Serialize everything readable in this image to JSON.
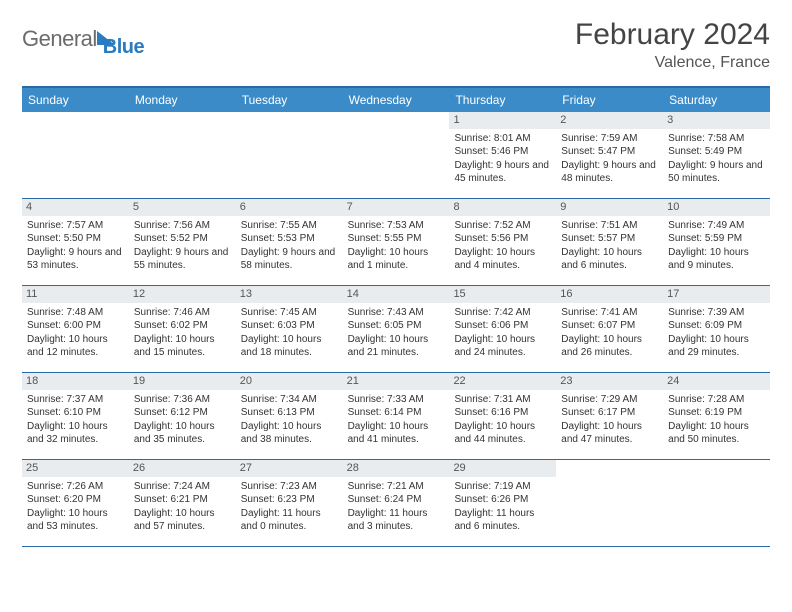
{
  "brand": {
    "word1": "General",
    "word2": "Blue"
  },
  "title": "February 2024",
  "location": "Valence, France",
  "colors": {
    "header_bg": "#3b8bc9",
    "border": "#2a6aa8",
    "daynum_bg": "#e9ecee",
    "text": "#333333",
    "logo_grey": "#6b6b6b",
    "logo_blue": "#2a7bbf"
  },
  "days_of_week": [
    "Sunday",
    "Monday",
    "Tuesday",
    "Wednesday",
    "Thursday",
    "Friday",
    "Saturday"
  ],
  "weeks": [
    [
      {
        "n": "",
        "sr": "",
        "ss": "",
        "dl": ""
      },
      {
        "n": "",
        "sr": "",
        "ss": "",
        "dl": ""
      },
      {
        "n": "",
        "sr": "",
        "ss": "",
        "dl": ""
      },
      {
        "n": "",
        "sr": "",
        "ss": "",
        "dl": ""
      },
      {
        "n": "1",
        "sr": "8:01 AM",
        "ss": "5:46 PM",
        "dl": "9 hours and 45 minutes."
      },
      {
        "n": "2",
        "sr": "7:59 AM",
        "ss": "5:47 PM",
        "dl": "9 hours and 48 minutes."
      },
      {
        "n": "3",
        "sr": "7:58 AM",
        "ss": "5:49 PM",
        "dl": "9 hours and 50 minutes."
      }
    ],
    [
      {
        "n": "4",
        "sr": "7:57 AM",
        "ss": "5:50 PM",
        "dl": "9 hours and 53 minutes."
      },
      {
        "n": "5",
        "sr": "7:56 AM",
        "ss": "5:52 PM",
        "dl": "9 hours and 55 minutes."
      },
      {
        "n": "6",
        "sr": "7:55 AM",
        "ss": "5:53 PM",
        "dl": "9 hours and 58 minutes."
      },
      {
        "n": "7",
        "sr": "7:53 AM",
        "ss": "5:55 PM",
        "dl": "10 hours and 1 minute."
      },
      {
        "n": "8",
        "sr": "7:52 AM",
        "ss": "5:56 PM",
        "dl": "10 hours and 4 minutes."
      },
      {
        "n": "9",
        "sr": "7:51 AM",
        "ss": "5:57 PM",
        "dl": "10 hours and 6 minutes."
      },
      {
        "n": "10",
        "sr": "7:49 AM",
        "ss": "5:59 PM",
        "dl": "10 hours and 9 minutes."
      }
    ],
    [
      {
        "n": "11",
        "sr": "7:48 AM",
        "ss": "6:00 PM",
        "dl": "10 hours and 12 minutes."
      },
      {
        "n": "12",
        "sr": "7:46 AM",
        "ss": "6:02 PM",
        "dl": "10 hours and 15 minutes."
      },
      {
        "n": "13",
        "sr": "7:45 AM",
        "ss": "6:03 PM",
        "dl": "10 hours and 18 minutes."
      },
      {
        "n": "14",
        "sr": "7:43 AM",
        "ss": "6:05 PM",
        "dl": "10 hours and 21 minutes."
      },
      {
        "n": "15",
        "sr": "7:42 AM",
        "ss": "6:06 PM",
        "dl": "10 hours and 24 minutes."
      },
      {
        "n": "16",
        "sr": "7:41 AM",
        "ss": "6:07 PM",
        "dl": "10 hours and 26 minutes."
      },
      {
        "n": "17",
        "sr": "7:39 AM",
        "ss": "6:09 PM",
        "dl": "10 hours and 29 minutes."
      }
    ],
    [
      {
        "n": "18",
        "sr": "7:37 AM",
        "ss": "6:10 PM",
        "dl": "10 hours and 32 minutes."
      },
      {
        "n": "19",
        "sr": "7:36 AM",
        "ss": "6:12 PM",
        "dl": "10 hours and 35 minutes."
      },
      {
        "n": "20",
        "sr": "7:34 AM",
        "ss": "6:13 PM",
        "dl": "10 hours and 38 minutes."
      },
      {
        "n": "21",
        "sr": "7:33 AM",
        "ss": "6:14 PM",
        "dl": "10 hours and 41 minutes."
      },
      {
        "n": "22",
        "sr": "7:31 AM",
        "ss": "6:16 PM",
        "dl": "10 hours and 44 minutes."
      },
      {
        "n": "23",
        "sr": "7:29 AM",
        "ss": "6:17 PM",
        "dl": "10 hours and 47 minutes."
      },
      {
        "n": "24",
        "sr": "7:28 AM",
        "ss": "6:19 PM",
        "dl": "10 hours and 50 minutes."
      }
    ],
    [
      {
        "n": "25",
        "sr": "7:26 AM",
        "ss": "6:20 PM",
        "dl": "10 hours and 53 minutes."
      },
      {
        "n": "26",
        "sr": "7:24 AM",
        "ss": "6:21 PM",
        "dl": "10 hours and 57 minutes."
      },
      {
        "n": "27",
        "sr": "7:23 AM",
        "ss": "6:23 PM",
        "dl": "11 hours and 0 minutes."
      },
      {
        "n": "28",
        "sr": "7:21 AM",
        "ss": "6:24 PM",
        "dl": "11 hours and 3 minutes."
      },
      {
        "n": "29",
        "sr": "7:19 AM",
        "ss": "6:26 PM",
        "dl": "11 hours and 6 minutes."
      },
      {
        "n": "",
        "sr": "",
        "ss": "",
        "dl": ""
      },
      {
        "n": "",
        "sr": "",
        "ss": "",
        "dl": ""
      }
    ]
  ],
  "labels": {
    "sunrise": "Sunrise:",
    "sunset": "Sunset:",
    "daylight": "Daylight:"
  }
}
